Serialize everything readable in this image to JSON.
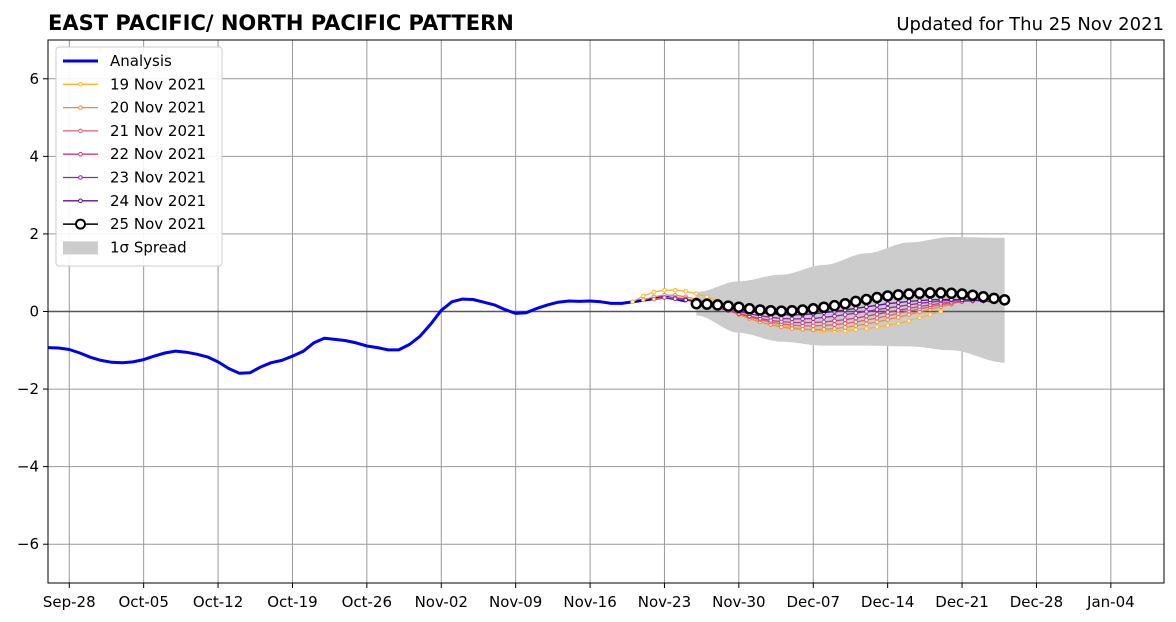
{
  "chart_data": {
    "type": "line",
    "title": "EAST PACIFIC/ NORTH PACIFIC PATTERN",
    "subtitle": "Updated for Thu 25 Nov 2021",
    "xlabel": "",
    "ylabel": "",
    "ylim": [
      -7,
      7
    ],
    "xlim": [
      "2021-09-26",
      "2022-01-09"
    ],
    "yticks": [
      -6,
      -4,
      -2,
      0,
      2,
      4,
      6
    ],
    "ytick_labels": [
      "−6",
      "−4",
      "−2",
      "0",
      "2",
      "4",
      "6"
    ],
    "xticks": [
      "2021-09-28",
      "2021-10-05",
      "2021-10-12",
      "2021-10-19",
      "2021-10-26",
      "2021-11-02",
      "2021-11-09",
      "2021-11-16",
      "2021-11-23",
      "2021-11-30",
      "2021-12-07",
      "2021-12-14",
      "2021-12-21",
      "2021-12-28",
      "2022-01-04"
    ],
    "xtick_labels": [
      "Sep-28",
      "Oct-05",
      "Oct-12",
      "Oct-19",
      "Oct-26",
      "Nov-02",
      "Nov-09",
      "Nov-16",
      "Nov-23",
      "Nov-30",
      "Dec-07",
      "Dec-14",
      "Dec-21",
      "Dec-28",
      "Jan-04"
    ],
    "grid": true,
    "legend_position": "top-left",
    "legend": [
      "Analysis",
      "19 Nov 2021",
      "20 Nov 2021",
      "21 Nov 2021",
      "22 Nov 2021",
      "23 Nov 2021",
      "24 Nov 2021",
      "25 Nov 2021",
      "1σ Spread"
    ],
    "series": [
      {
        "name": "Analysis",
        "color": "#0000ee",
        "style": "thick-line",
        "x": [
          "2021-09-26",
          "2021-09-27",
          "2021-09-28",
          "2021-09-29",
          "2021-09-30",
          "2021-10-01",
          "2021-10-02",
          "2021-10-03",
          "2021-10-04",
          "2021-10-05",
          "2021-10-06",
          "2021-10-07",
          "2021-10-08",
          "2021-10-09",
          "2021-10-10",
          "2021-10-11",
          "2021-10-12",
          "2021-10-13",
          "2021-10-14",
          "2021-10-15",
          "2021-10-16",
          "2021-10-17",
          "2021-10-18",
          "2021-10-19",
          "2021-10-20",
          "2021-10-21",
          "2021-10-22",
          "2021-10-23",
          "2021-10-24",
          "2021-10-25",
          "2021-10-26",
          "2021-10-27",
          "2021-10-28",
          "2021-10-29",
          "2021-10-30",
          "2021-10-31",
          "2021-11-01",
          "2021-11-02",
          "2021-11-03",
          "2021-11-04",
          "2021-11-05",
          "2021-11-06",
          "2021-11-07",
          "2021-11-08",
          "2021-11-09",
          "2021-11-10",
          "2021-11-11",
          "2021-11-12",
          "2021-11-13",
          "2021-11-14",
          "2021-11-15",
          "2021-11-16",
          "2021-11-17",
          "2021-11-18",
          "2021-11-19",
          "2021-11-20",
          "2021-11-21",
          "2021-11-22",
          "2021-11-23",
          "2021-11-24",
          "2021-11-25"
        ],
        "y": [
          -0.93,
          -0.94,
          -0.98,
          -1.07,
          -1.18,
          -1.26,
          -1.31,
          -1.32,
          -1.3,
          -1.24,
          -1.15,
          -1.07,
          -1.02,
          -1.05,
          -1.1,
          -1.17,
          -1.3,
          -1.47,
          -1.59,
          -1.58,
          -1.43,
          -1.32,
          -1.26,
          -1.15,
          -1.03,
          -0.81,
          -0.69,
          -0.72,
          -0.75,
          -0.81,
          -0.89,
          -0.93,
          -0.99,
          -0.99,
          -0.85,
          -0.64,
          -0.33,
          0.03,
          0.25,
          0.32,
          0.31,
          0.24,
          0.17,
          0.05,
          -0.05,
          -0.03,
          0.08,
          0.17,
          0.24,
          0.27,
          0.26,
          0.27,
          0.25,
          0.21,
          0.21,
          0.25,
          0.29,
          0.33,
          0.37,
          0.33,
          0.27
        ]
      },
      {
        "name": "19 Nov 2021",
        "color": "#fcb42b",
        "x": [
          "2021-11-20",
          "2021-11-21",
          "2021-11-22",
          "2021-11-23",
          "2021-11-24",
          "2021-11-25",
          "2021-11-26",
          "2021-11-27",
          "2021-11-28",
          "2021-11-29",
          "2021-11-30",
          "2021-12-01",
          "2021-12-02",
          "2021-12-03",
          "2021-12-04",
          "2021-12-05",
          "2021-12-06",
          "2021-12-07",
          "2021-12-08",
          "2021-12-09",
          "2021-12-10",
          "2021-12-11",
          "2021-12-12",
          "2021-12-13",
          "2021-12-14",
          "2021-12-15",
          "2021-12-16",
          "2021-12-17",
          "2021-12-18",
          "2021-12-19"
        ],
        "y": [
          0.25,
          0.4,
          0.5,
          0.55,
          0.55,
          0.52,
          0.46,
          0.38,
          0.28,
          0.15,
          0.02,
          -0.1,
          -0.2,
          -0.28,
          -0.35,
          -0.4,
          -0.45,
          -0.48,
          -0.5,
          -0.51,
          -0.5,
          -0.47,
          -0.44,
          -0.4,
          -0.36,
          -0.31,
          -0.24,
          -0.16,
          -0.08,
          0.0
        ]
      },
      {
        "name": "20 Nov 2021",
        "color": "#f4873d",
        "x": [
          "2021-11-21",
          "2021-11-22",
          "2021-11-23",
          "2021-11-24",
          "2021-11-25",
          "2021-11-26",
          "2021-11-27",
          "2021-11-28",
          "2021-11-29",
          "2021-11-30",
          "2021-12-01",
          "2021-12-02",
          "2021-12-03",
          "2021-12-04",
          "2021-12-05",
          "2021-12-06",
          "2021-12-07",
          "2021-12-08",
          "2021-12-09",
          "2021-12-10",
          "2021-12-11",
          "2021-12-12",
          "2021-12-13",
          "2021-12-14",
          "2021-12-15",
          "2021-12-16",
          "2021-12-17",
          "2021-12-18",
          "2021-12-19",
          "2021-12-20"
        ],
        "y": [
          0.3,
          0.38,
          0.42,
          0.42,
          0.38,
          0.32,
          0.24,
          0.14,
          0.03,
          -0.08,
          -0.18,
          -0.27,
          -0.34,
          -0.4,
          -0.44,
          -0.46,
          -0.47,
          -0.46,
          -0.44,
          -0.41,
          -0.37,
          -0.32,
          -0.27,
          -0.21,
          -0.15,
          -0.08,
          -0.01,
          0.06,
          0.12,
          0.18
        ]
      },
      {
        "name": "21 Nov 2021",
        "color": "#e26065",
        "x": [
          "2021-11-22",
          "2021-11-23",
          "2021-11-24",
          "2021-11-25",
          "2021-11-26",
          "2021-11-27",
          "2021-11-28",
          "2021-11-29",
          "2021-11-30",
          "2021-12-01",
          "2021-12-02",
          "2021-12-03",
          "2021-12-04",
          "2021-12-05",
          "2021-12-06",
          "2021-12-07",
          "2021-12-08",
          "2021-12-09",
          "2021-12-10",
          "2021-12-11",
          "2021-12-12",
          "2021-12-13",
          "2021-12-14",
          "2021-12-15",
          "2021-12-16",
          "2021-12-17",
          "2021-12-18",
          "2021-12-19",
          "2021-12-20",
          "2021-12-21"
        ],
        "y": [
          0.32,
          0.36,
          0.36,
          0.33,
          0.27,
          0.2,
          0.12,
          0.03,
          -0.06,
          -0.14,
          -0.21,
          -0.27,
          -0.32,
          -0.35,
          -0.37,
          -0.37,
          -0.36,
          -0.34,
          -0.31,
          -0.27,
          -0.22,
          -0.17,
          -0.11,
          -0.05,
          0.01,
          0.07,
          0.12,
          0.17,
          0.21,
          0.25
        ]
      },
      {
        "name": "22 Nov 2021",
        "color": "#c73e7e",
        "x": [
          "2021-11-23",
          "2021-11-24",
          "2021-11-25",
          "2021-11-26",
          "2021-11-27",
          "2021-11-28",
          "2021-11-29",
          "2021-11-30",
          "2021-12-01",
          "2021-12-02",
          "2021-12-03",
          "2021-12-04",
          "2021-12-05",
          "2021-12-06",
          "2021-12-07",
          "2021-12-08",
          "2021-12-09",
          "2021-12-10",
          "2021-12-11",
          "2021-12-12",
          "2021-12-13",
          "2021-12-14",
          "2021-12-15",
          "2021-12-16",
          "2021-12-17",
          "2021-12-18",
          "2021-12-19",
          "2021-12-20",
          "2021-12-21",
          "2021-12-22"
        ],
        "y": [
          0.36,
          0.34,
          0.3,
          0.24,
          0.17,
          0.1,
          0.02,
          -0.05,
          -0.12,
          -0.18,
          -0.23,
          -0.26,
          -0.28,
          -0.29,
          -0.28,
          -0.27,
          -0.24,
          -0.21,
          -0.17,
          -0.12,
          -0.07,
          -0.02,
          0.03,
          0.08,
          0.13,
          0.17,
          0.21,
          0.24,
          0.26,
          0.27
        ]
      },
      {
        "name": "23 Nov 2021",
        "color": "#9624a0",
        "x": [
          "2021-11-24",
          "2021-11-25",
          "2021-11-26",
          "2021-11-27",
          "2021-11-28",
          "2021-11-29",
          "2021-11-30",
          "2021-12-01",
          "2021-12-02",
          "2021-12-03",
          "2021-12-04",
          "2021-12-05",
          "2021-12-06",
          "2021-12-07",
          "2021-12-08",
          "2021-12-09",
          "2021-12-10",
          "2021-12-11",
          "2021-12-12",
          "2021-12-13",
          "2021-12-14",
          "2021-12-15",
          "2021-12-16",
          "2021-12-17",
          "2021-12-18",
          "2021-12-19",
          "2021-12-20",
          "2021-12-21",
          "2021-12-22",
          "2021-12-23"
        ],
        "y": [
          0.33,
          0.3,
          0.25,
          0.19,
          0.13,
          0.07,
          0.0,
          -0.06,
          -0.11,
          -0.15,
          -0.18,
          -0.19,
          -0.19,
          -0.18,
          -0.15,
          -0.12,
          -0.08,
          -0.04,
          0.0,
          0.05,
          0.09,
          0.13,
          0.17,
          0.21,
          0.24,
          0.27,
          0.29,
          0.3,
          0.3,
          0.29
        ]
      },
      {
        "name": "24 Nov 2021",
        "color": "#5c0f9a",
        "x": [
          "2021-11-25",
          "2021-11-26",
          "2021-11-27",
          "2021-11-28",
          "2021-11-29",
          "2021-11-30",
          "2021-12-01",
          "2021-12-02",
          "2021-12-03",
          "2021-12-04",
          "2021-12-05",
          "2021-12-06",
          "2021-12-07",
          "2021-12-08",
          "2021-12-09",
          "2021-12-10",
          "2021-12-11",
          "2021-12-12",
          "2021-12-13",
          "2021-12-14",
          "2021-12-15",
          "2021-12-16",
          "2021-12-17",
          "2021-12-18",
          "2021-12-19",
          "2021-12-20",
          "2021-12-21",
          "2021-12-22",
          "2021-12-23",
          "2021-12-24"
        ],
        "y": [
          0.3,
          0.26,
          0.21,
          0.16,
          0.11,
          0.06,
          0.01,
          -0.03,
          -0.06,
          -0.08,
          -0.09,
          -0.08,
          -0.06,
          -0.03,
          0.0,
          0.04,
          0.08,
          0.12,
          0.16,
          0.2,
          0.23,
          0.26,
          0.28,
          0.3,
          0.31,
          0.31,
          0.3,
          0.29,
          0.27,
          0.25
        ]
      },
      {
        "name": "25 Nov 2021",
        "color": "#000000",
        "style": "open-circles",
        "x": [
          "2021-11-26",
          "2021-11-27",
          "2021-11-28",
          "2021-11-29",
          "2021-11-30",
          "2021-12-01",
          "2021-12-02",
          "2021-12-03",
          "2021-12-04",
          "2021-12-05",
          "2021-12-06",
          "2021-12-07",
          "2021-12-08",
          "2021-12-09",
          "2021-12-10",
          "2021-12-11",
          "2021-12-12",
          "2021-12-13",
          "2021-12-14",
          "2021-12-15",
          "2021-12-16",
          "2021-12-17",
          "2021-12-18",
          "2021-12-19",
          "2021-12-20",
          "2021-12-21",
          "2021-12-22",
          "2021-12-23",
          "2021-12-24",
          "2021-12-25"
        ],
        "y": [
          0.2,
          0.19,
          0.17,
          0.14,
          0.11,
          0.07,
          0.04,
          0.02,
          0.01,
          0.02,
          0.04,
          0.07,
          0.11,
          0.15,
          0.2,
          0.26,
          0.31,
          0.36,
          0.4,
          0.43,
          0.45,
          0.47,
          0.48,
          0.48,
          0.47,
          0.45,
          0.42,
          0.38,
          0.34,
          0.3
        ]
      }
    ],
    "spread": {
      "name": "1σ Spread",
      "color": "#cccccc",
      "x": [
        "2021-11-26",
        "2021-11-30",
        "2021-12-04",
        "2021-12-08",
        "2021-12-12",
        "2021-12-16",
        "2021-12-20",
        "2021-12-25"
      ],
      "upper": [
        0.5,
        0.78,
        0.95,
        1.2,
        1.5,
        1.78,
        1.92,
        1.9
      ],
      "lower": [
        -0.1,
        -0.55,
        -0.78,
        -0.88,
        -0.88,
        -0.9,
        -1.0,
        -1.32
      ]
    }
  }
}
